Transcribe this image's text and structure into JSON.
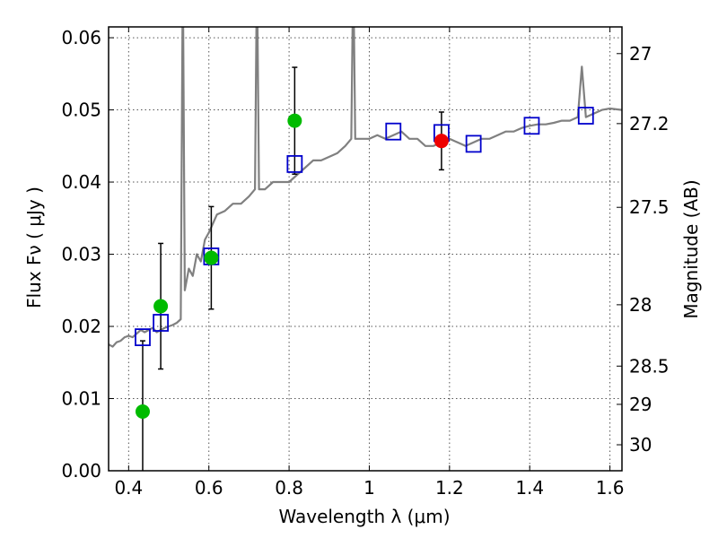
{
  "chart_data": {
    "type": "scatter",
    "xlabel": "Wavelength  λ (μm)",
    "ylabel": "Flux  Fν  ( μJy )",
    "y2label": "Magnitude (AB)",
    "xlim": [
      0.35,
      1.63
    ],
    "ylim": [
      0.0,
      0.0615
    ],
    "grid": true,
    "xticks": [
      0.4,
      0.6,
      0.8,
      1.0,
      1.2,
      1.4,
      1.6
    ],
    "xtick_labels": [
      "0.4",
      "0.6",
      "0.8",
      "1",
      "1.2",
      "1.4",
      "1.6"
    ],
    "yticks": [
      0.0,
      0.01,
      0.02,
      0.03,
      0.04,
      0.05,
      0.06
    ],
    "ytick_labels": [
      "0.00",
      "0.01",
      "0.02",
      "0.03",
      "0.04",
      "0.05",
      "0.06"
    ],
    "y2ticks": [
      {
        "label": "27",
        "flux": 0.0578
      },
      {
        "label": "27.2",
        "flux": 0.0481
      },
      {
        "label": "27.5",
        "flux": 0.0365
      },
      {
        "label": "28",
        "flux": 0.023
      },
      {
        "label": "28.5",
        "flux": 0.0145
      },
      {
        "label": "29",
        "flux": 0.0092
      },
      {
        "label": "30",
        "flux": 0.0036
      }
    ],
    "colors": {
      "model": "#808080",
      "model_fluxes": "#0000cc",
      "hst_photometry": "#00bb00",
      "ir_photometry": "#ee0000",
      "errorbar": "#000000",
      "grid": "#555555"
    },
    "series": [
      {
        "kind": "line",
        "role": "model spectrum",
        "x": [
          0.35,
          0.36,
          0.37,
          0.38,
          0.39,
          0.4,
          0.41,
          0.42,
          0.43,
          0.44,
          0.45,
          0.46,
          0.47,
          0.48,
          0.49,
          0.5,
          0.51,
          0.52,
          0.53,
          0.535,
          0.54,
          0.55,
          0.56,
          0.57,
          0.58,
          0.59,
          0.6,
          0.62,
          0.64,
          0.66,
          0.68,
          0.7,
          0.715,
          0.72,
          0.725,
          0.74,
          0.76,
          0.78,
          0.8,
          0.82,
          0.84,
          0.86,
          0.88,
          0.9,
          0.92,
          0.94,
          0.955,
          0.96,
          0.965,
          0.98,
          1.0,
          1.02,
          1.04,
          1.06,
          1.08,
          1.1,
          1.12,
          1.14,
          1.16,
          1.18,
          1.2,
          1.22,
          1.24,
          1.26,
          1.28,
          1.3,
          1.32,
          1.34,
          1.36,
          1.38,
          1.4,
          1.42,
          1.44,
          1.46,
          1.48,
          1.5,
          1.52,
          1.53,
          1.54,
          1.56,
          1.58,
          1.6,
          1.63
        ],
        "y": [
          0.0175,
          0.0172,
          0.0178,
          0.018,
          0.0185,
          0.0187,
          0.0185,
          0.019,
          0.0195,
          0.0192,
          0.0195,
          0.0198,
          0.0192,
          0.0195,
          0.0198,
          0.02,
          0.0202,
          0.0205,
          0.021,
          0.07,
          0.025,
          0.028,
          0.027,
          0.03,
          0.029,
          0.032,
          0.033,
          0.0355,
          0.036,
          0.037,
          0.037,
          0.038,
          0.039,
          0.07,
          0.039,
          0.039,
          0.04,
          0.04,
          0.04,
          0.041,
          0.042,
          0.043,
          0.043,
          0.0435,
          0.044,
          0.045,
          0.046,
          0.07,
          0.046,
          0.046,
          0.046,
          0.0465,
          0.046,
          0.0465,
          0.047,
          0.046,
          0.046,
          0.045,
          0.045,
          0.0455,
          0.046,
          0.0455,
          0.045,
          0.0455,
          0.046,
          0.046,
          0.0465,
          0.047,
          0.047,
          0.0475,
          0.0478,
          0.048,
          0.048,
          0.0482,
          0.0485,
          0.0485,
          0.049,
          0.056,
          0.049,
          0.0495,
          0.05,
          0.0502,
          0.05
        ]
      },
      {
        "kind": "square",
        "role": "model fluxes",
        "x": [
          0.435,
          0.48,
          0.606,
          0.814,
          1.06,
          1.18,
          1.26,
          1.405,
          1.54
        ],
        "y": [
          0.0185,
          0.0205,
          0.0297,
          0.0425,
          0.047,
          0.0468,
          0.0453,
          0.0478,
          0.0492
        ]
      },
      {
        "kind": "circle",
        "role": "HST photometry",
        "x": [
          0.435,
          0.48,
          0.606,
          0.814
        ],
        "y": [
          0.0082,
          0.0228,
          0.0295,
          0.0485
        ],
        "yerr": [
          0.0098,
          0.0087,
          0.0071,
          0.0074
        ]
      },
      {
        "kind": "circle",
        "role": "IR photometry",
        "x": [
          1.18
        ],
        "y": [
          0.0457
        ],
        "yerr": [
          0.004
        ]
      }
    ]
  }
}
